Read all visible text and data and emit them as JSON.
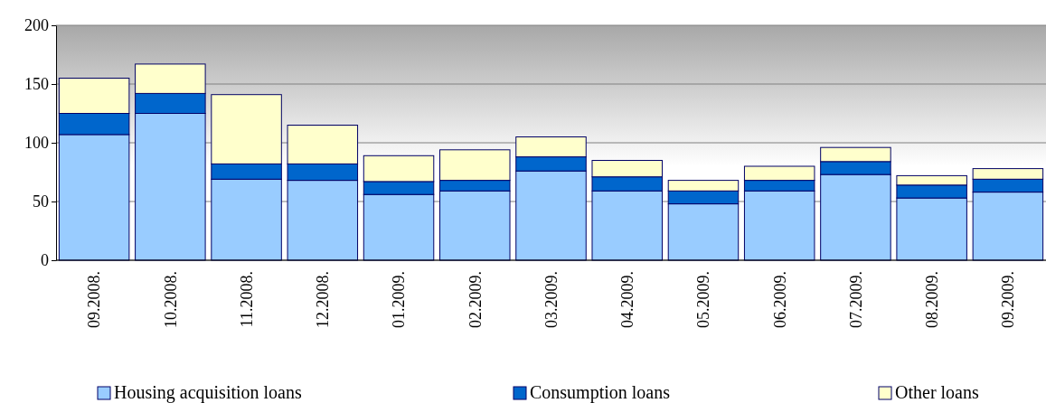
{
  "chart_data": {
    "type": "bar",
    "stacked": true,
    "categories": [
      "09.2008.",
      "10.2008.",
      "11.2008.",
      "12.2008.",
      "01.2009.",
      "02.2009.",
      "03.2009.",
      "04.2009.",
      "05.2009.",
      "06.2009.",
      "07.2009.",
      "08.2009.",
      "09.2009."
    ],
    "series": [
      {
        "name": "Housing acquisition loans",
        "color": "#99ccff",
        "values": [
          107,
          125,
          69,
          68,
          56,
          59,
          76,
          59,
          48,
          59,
          73,
          53,
          58
        ]
      },
      {
        "name": "Consumption loans",
        "color": "#0066cc",
        "values": [
          18,
          17,
          13,
          14,
          11,
          9,
          12,
          12,
          11,
          9,
          11,
          11,
          11
        ]
      },
      {
        "name": "Other loans",
        "color": "#ffffcc",
        "values": [
          30,
          25,
          59,
          33,
          22,
          26,
          17,
          14,
          9,
          12,
          12,
          8,
          9
        ]
      }
    ],
    "ylim": [
      0,
      200
    ],
    "yticks": [
      0,
      50,
      100,
      150,
      200
    ],
    "grid": "y",
    "legend": "bottom"
  }
}
